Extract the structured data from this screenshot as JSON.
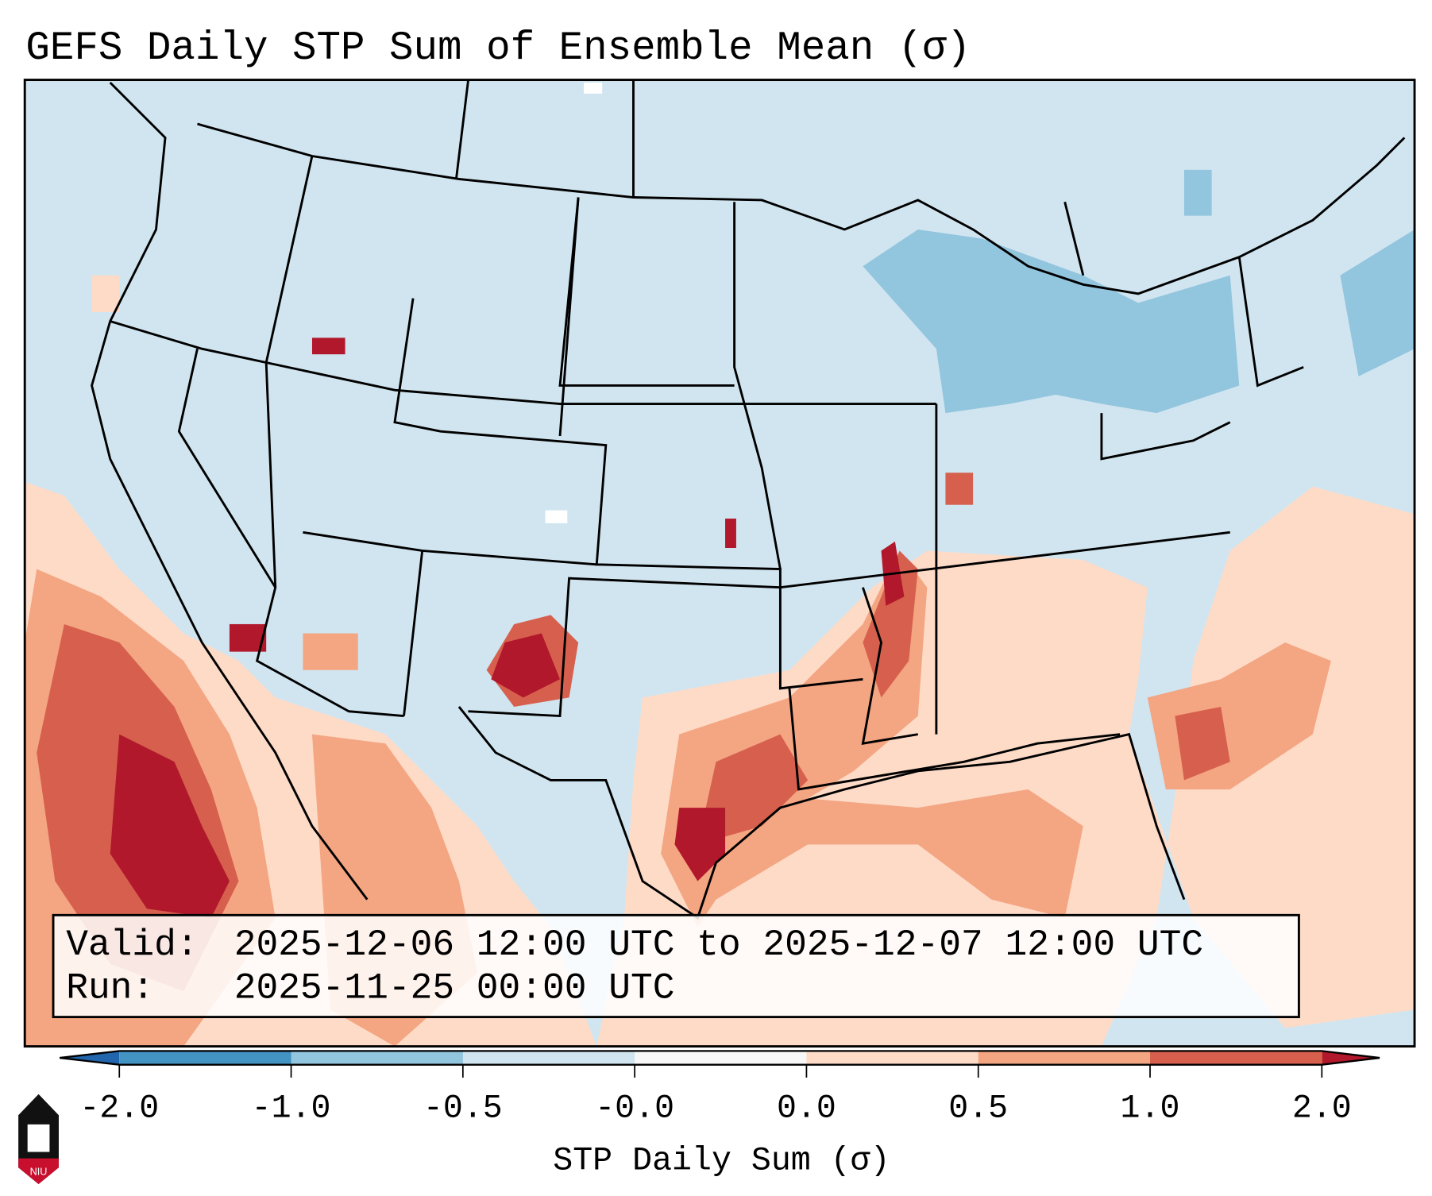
{
  "chart_data": {
    "type": "heatmap",
    "title": "GEFS Daily STP Sum of Ensemble Mean (σ)",
    "colorbar": {
      "label": "STP Daily Sum (σ)",
      "ticks": [
        "-2.0",
        "-1.0",
        "-0.5",
        "-0.0",
        "0.0",
        "0.5",
        "1.0",
        "2.0"
      ],
      "bounds": [
        -2.0,
        -1.0,
        -0.5,
        -0.0,
        0.0,
        0.5,
        1.0,
        2.0
      ],
      "colors": [
        "#4393c3",
        "#92c5de",
        "#d1e5f0",
        "#f7f7f7",
        "#fddbc7",
        "#f4a582",
        "#d6604d"
      ],
      "extend_low_color": "#2166ac",
      "extend_high_color": "#b2182b"
    },
    "region": "Continental United States",
    "summary": "Elevated values (0.5 to >2.0) over the Gulf Coast, lower Mississippi Valley, southern Plains, northwest Mexico and the western Atlantic; slightly negative values over the Great Lakes and Northeast."
  },
  "info_box": {
    "valid_label": "Valid:",
    "valid_value": "2025-12-06 12:00 UTC to 2025-12-07 12:00 UTC",
    "run_label": "Run:",
    "run_value": "2025-11-25 00:00 UTC"
  },
  "logo": {
    "text": "NIU"
  }
}
